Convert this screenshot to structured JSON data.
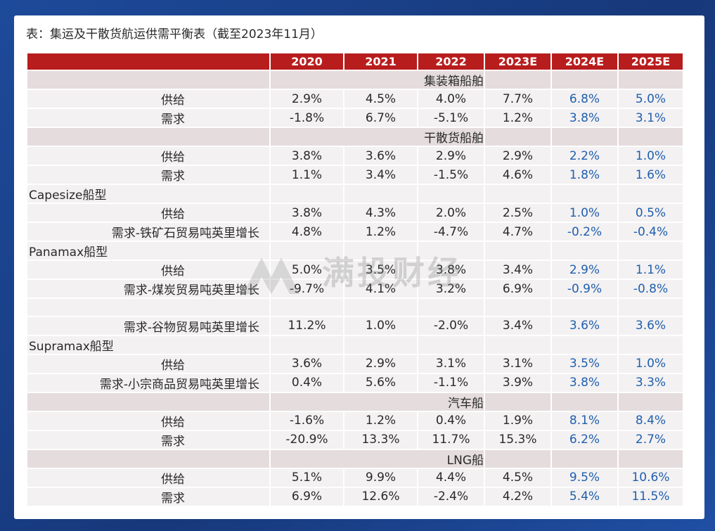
{
  "title": "表：集运及干散货航运供需平衡表（截至2023年11月）",
  "watermark": "满投财经",
  "header": [
    "2020",
    "2021",
    "2022",
    "2023E",
    "2024E",
    "2025E"
  ],
  "sections": [
    {
      "kind": "center",
      "title": "集装箱船舶",
      "rows": [
        {
          "label": "供给",
          "values": [
            "2.9%",
            "4.5%",
            "4.0%",
            "7.7%",
            "6.8%",
            "5.0%"
          ]
        },
        {
          "label": "需求",
          "values": [
            "-1.8%",
            "6.7%",
            "-5.1%",
            "1.2%",
            "3.8%",
            "3.1%"
          ]
        }
      ]
    },
    {
      "kind": "center",
      "title": "干散货船舶",
      "rows": [
        {
          "label": "供给",
          "values": [
            "3.8%",
            "3.6%",
            "2.9%",
            "2.9%",
            "2.2%",
            "1.0%"
          ]
        },
        {
          "label": "需求",
          "values": [
            "1.1%",
            "3.4%",
            "-1.5%",
            "4.6%",
            "1.8%",
            "1.6%"
          ]
        }
      ]
    },
    {
      "kind": "left",
      "title": "Capesize船型",
      "rows": [
        {
          "label": "供给",
          "values": [
            "3.8%",
            "4.3%",
            "2.0%",
            "2.5%",
            "1.0%",
            "0.5%"
          ]
        },
        {
          "label": "需求-铁矿石贸易吨英里增长",
          "values": [
            "4.8%",
            "1.2%",
            "-4.7%",
            "4.7%",
            "-0.2%",
            "-0.4%"
          ]
        }
      ]
    },
    {
      "kind": "left",
      "title": "Panamax船型",
      "rows": [
        {
          "label": "供给",
          "values": [
            "5.0%",
            "3.5%",
            "3.8%",
            "3.4%",
            "2.9%",
            "1.1%"
          ]
        },
        {
          "label": "需求-煤炭贸易吨英里增长",
          "values": [
            "-9.7%",
            "4.1%",
            "3.2%",
            "6.9%",
            "-0.9%",
            "-0.8%"
          ]
        },
        {
          "label": "",
          "values": [
            "",
            "",
            "",
            "",
            "",
            ""
          ]
        },
        {
          "label": "需求-谷物贸易吨英里增长",
          "values": [
            "11.2%",
            "1.0%",
            "-2.0%",
            "3.4%",
            "3.6%",
            "3.6%"
          ]
        }
      ]
    },
    {
      "kind": "left",
      "title": "Supramax船型",
      "rows": [
        {
          "label": "供给",
          "values": [
            "3.6%",
            "2.9%",
            "3.1%",
            "3.1%",
            "3.5%",
            "1.0%"
          ]
        },
        {
          "label": "需求-小宗商品贸易吨英里增长",
          "values": [
            "0.4%",
            "5.6%",
            "-1.1%",
            "3.9%",
            "3.8%",
            "3.3%"
          ]
        }
      ]
    },
    {
      "kind": "center",
      "title": "汽车船",
      "rows": [
        {
          "label": "供给",
          "values": [
            "-1.6%",
            "1.2%",
            "0.4%",
            "1.9%",
            "8.1%",
            "8.4%"
          ]
        },
        {
          "label": "需求",
          "values": [
            "-20.9%",
            "13.3%",
            "11.7%",
            "15.3%",
            "6.2%",
            "2.7%"
          ]
        }
      ]
    },
    {
      "kind": "center",
      "title": "LNG船",
      "rows": [
        {
          "label": "供给",
          "values": [
            "5.1%",
            "9.9%",
            "4.4%",
            "4.5%",
            "9.5%",
            "10.6%"
          ]
        },
        {
          "label": "需求",
          "values": [
            "6.9%",
            "12.6%",
            "-2.4%",
            "4.2%",
            "5.4%",
            "11.5%"
          ]
        }
      ]
    }
  ],
  "colors": {
    "header_bg": "#b81d1d",
    "section_bg": "#e5dcdd",
    "cell_bg": "#f3f1f2",
    "estimate_text": "#1f5fae",
    "frame": "#1b3f86"
  }
}
